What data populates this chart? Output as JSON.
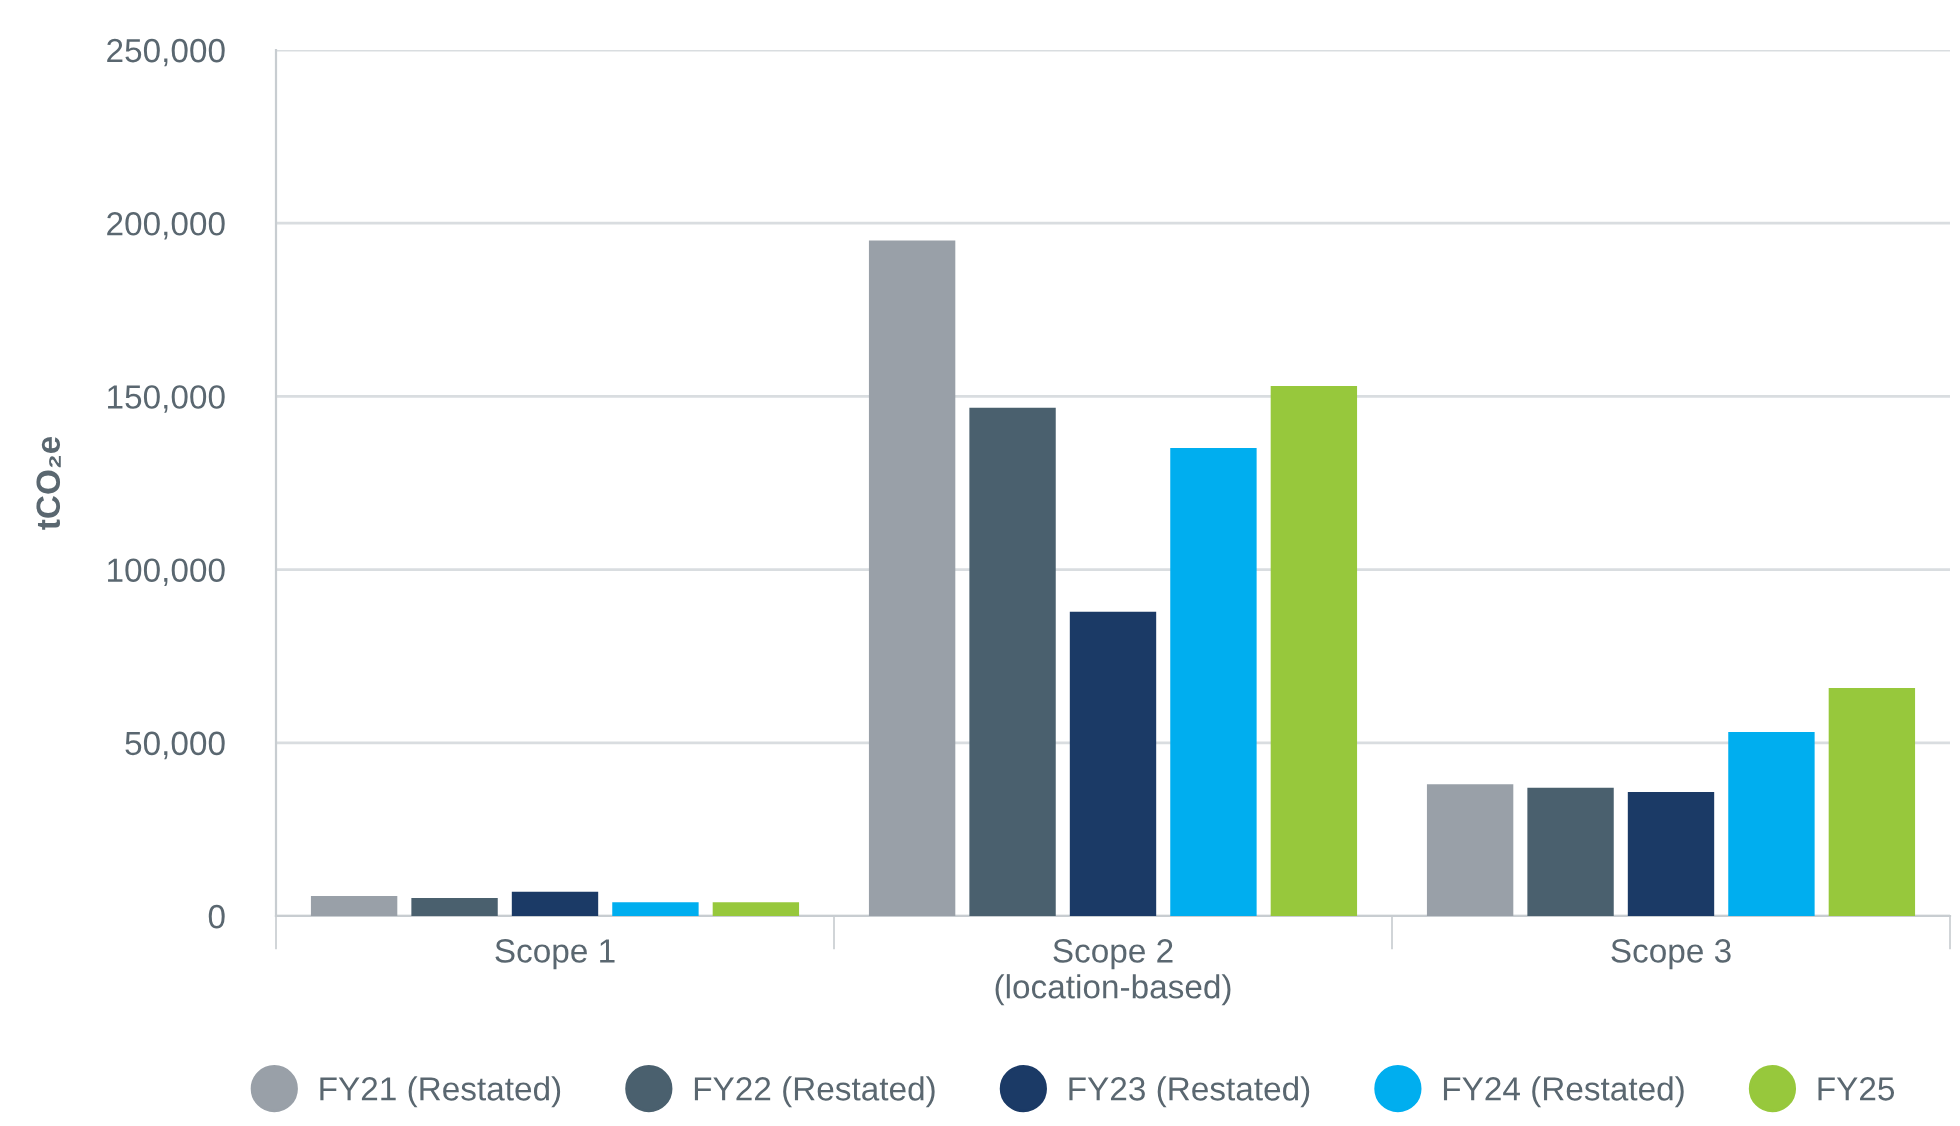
{
  "chart_data": {
    "type": "bar",
    "ylabel": "tCO₂e",
    "categories": [
      "Scope 1",
      "Scope 2\n(location-based)",
      "Scope 3"
    ],
    "series": [
      {
        "name": "FY21 (Restated)",
        "color": "#99a0a8",
        "values": [
          5800,
          195000,
          38000
        ]
      },
      {
        "name": "FY22 (Restated)",
        "color": "#4a606e",
        "values": [
          5200,
          146700,
          37000
        ]
      },
      {
        "name": "FY23 (Restated)",
        "color": "#1b3a66",
        "values": [
          7000,
          87800,
          35800
        ]
      },
      {
        "name": "FY24 (Restated)",
        "color": "#00aeef",
        "values": [
          4000,
          135100,
          53100
        ]
      },
      {
        "name": "FY25",
        "color": "#97c83c",
        "values": [
          4000,
          153000,
          65800
        ]
      }
    ],
    "ylim": [
      0,
      250000
    ],
    "yticks": [
      {
        "value": 0,
        "label": "0"
      },
      {
        "value": 50000,
        "label": "50,000"
      },
      {
        "value": 100000,
        "label": "100,000"
      },
      {
        "value": 150000,
        "label": "150,000"
      },
      {
        "value": 200000,
        "label": "200,000"
      },
      {
        "value": 250000,
        "label": "250,000"
      }
    ],
    "grid": "y",
    "legend": "bottom",
    "marker": "circle"
  }
}
